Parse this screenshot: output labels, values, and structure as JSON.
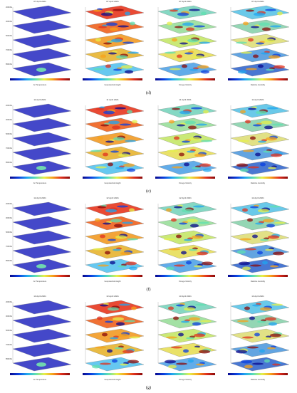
{
  "rows": [
    {
      "label": "(d)",
      "dates": [
        "07 April 2021",
        "07 April 2021",
        "07 April 2021",
        "07 April 2021"
      ]
    },
    {
      "label": "(e)",
      "dates": [
        "11 April 2021",
        "11 April 2021",
        "11 April 2021",
        "11 April 2021"
      ]
    },
    {
      "label": "(f)",
      "dates": [
        "12 April 2021",
        "12 April 2021",
        "12 April 2021",
        "12 April 2021"
      ]
    },
    {
      "label": "(g)",
      "dates": [
        "13 April 2021",
        "13 April 2021",
        "13 April 2021",
        "13 April 2021"
      ]
    }
  ],
  "columns": [
    {
      "colorbar_label": "Air Temperature",
      "palette": "temp"
    },
    {
      "colorbar_label": "Geopotential Height",
      "palette": "geo"
    },
    {
      "colorbar_label": "Omega Velocity",
      "palette": "omega"
    },
    {
      "colorbar_label": "Relative Humidity",
      "palette": "rh"
    }
  ],
  "levels": [
    "200hPa",
    "300hPa",
    "500hPa",
    "700hPa",
    "850hPa"
  ],
  "colors": {
    "temp_base": "#3b3fc7",
    "jet": [
      "#08088c",
      "#0a3fe0",
      "#1fa6f0",
      "#5fe0b0",
      "#e6f04a",
      "#f7a21a",
      "#e0301e",
      "#8a0a0a"
    ]
  }
}
